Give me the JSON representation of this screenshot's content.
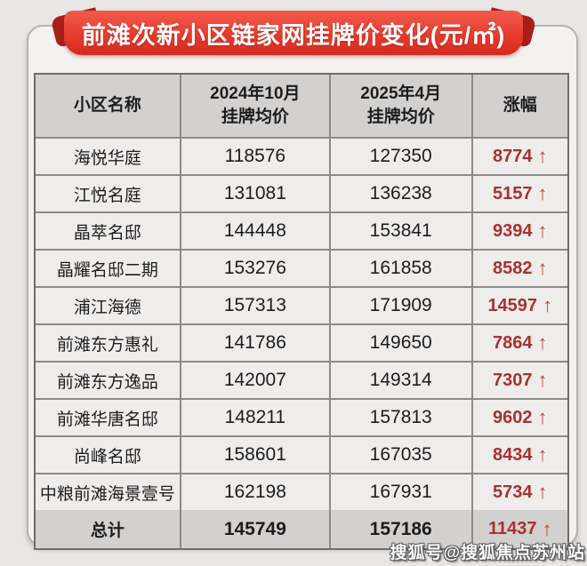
{
  "banner": {
    "title": "前滩次新小区链家网挂牌价变化(元/㎡)"
  },
  "icons": {
    "arrow_up": "↑"
  },
  "colors": {
    "banner_red": "#e63c2e",
    "banner_fold_red": "#a8201a",
    "header_bg": "#d3d1d0",
    "row_bg": "#efedec",
    "change_text": "#a8322e",
    "arrow_red": "#c2472c"
  },
  "table": {
    "headers": [
      "小区名称",
      "2024年10月\n挂牌均价",
      "2025年4月\n挂牌均价",
      "涨幅"
    ],
    "rows": [
      {
        "name": "海悦华庭",
        "oct2024": "118576",
        "apr2025": "127350",
        "change": "8774"
      },
      {
        "name": "江悦名庭",
        "oct2024": "131081",
        "apr2025": "136238",
        "change": "5157"
      },
      {
        "name": "晶萃名邸",
        "oct2024": "144448",
        "apr2025": "153841",
        "change": "9394"
      },
      {
        "name": "晶耀名邸二期",
        "oct2024": "153276",
        "apr2025": "161858",
        "change": "8582"
      },
      {
        "name": "浦江海德",
        "oct2024": "157313",
        "apr2025": "171909",
        "change": "14597"
      },
      {
        "name": "前滩东方惠礼",
        "oct2024": "141786",
        "apr2025": "149650",
        "change": "7864"
      },
      {
        "name": "前滩东方逸品",
        "oct2024": "142007",
        "apr2025": "149314",
        "change": "7307"
      },
      {
        "name": "前滩华唐名邸",
        "oct2024": "148211",
        "apr2025": "157813",
        "change": "9602"
      },
      {
        "name": "尚峰名邸",
        "oct2024": "158601",
        "apr2025": "167035",
        "change": "8434"
      },
      {
        "name": "中粮前滩海景壹号",
        "oct2024": "162198",
        "apr2025": "167931",
        "change": "5734"
      }
    ],
    "total": {
      "name": "总计",
      "oct2024": "145749",
      "apr2025": "157186",
      "change": "11437"
    }
  },
  "watermark": "搜狐号@搜狐焦点苏州站",
  "chart_data": {
    "type": "table",
    "title": "前滩次新小区链家网挂牌价变化(元/㎡)",
    "columns": [
      "小区名称",
      "2024年10月挂牌均价",
      "2025年4月挂牌均价",
      "涨幅"
    ],
    "rows": [
      [
        "海悦华庭",
        118576,
        127350,
        8774
      ],
      [
        "江悦名庭",
        131081,
        136238,
        5157
      ],
      [
        "晶萃名邸",
        144448,
        153841,
        9394
      ],
      [
        "晶耀名邸二期",
        153276,
        161858,
        8582
      ],
      [
        "浦江海德",
        157313,
        171909,
        14597
      ],
      [
        "前滩东方惠礼",
        141786,
        149650,
        7864
      ],
      [
        "前滩东方逸品",
        142007,
        149314,
        7307
      ],
      [
        "前滩华唐名邸",
        148211,
        157813,
        9602
      ],
      [
        "尚峰名邸",
        158601,
        167035,
        8434
      ],
      [
        "中粮前滩海景壹号",
        162198,
        167931,
        5734
      ],
      [
        "总计",
        145749,
        157186,
        11437
      ]
    ],
    "notes": "所有涨幅均为上涨(红色向上箭头)"
  }
}
